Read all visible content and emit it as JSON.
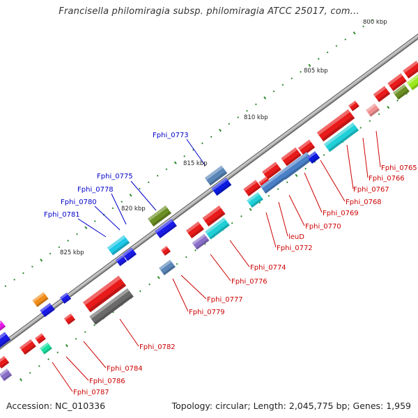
{
  "title": "Francisella philomiragia subsp. philomiragia ATCC 25017, com...",
  "accession": "Accession: NC_010336",
  "topology": "Topology: circular; Length: 2,045,775 bp; Genes: 1,959",
  "colors": {
    "backbone": "#8a8a8a",
    "label_forward": "#0000cc",
    "label_reverse": "#cc0000",
    "tick": "#2e8b2e"
  },
  "scale_labels": [
    "800 kbp",
    "805 kbp",
    "810 kbp",
    "815 kbp",
    "820 kbp",
    "825 kbp"
  ],
  "gene_labels_forward": [
    "Fphi_0773",
    "Fphi_0775",
    "Fphi_0778",
    "Fphi_0780",
    "Fphi_0781"
  ],
  "gene_labels_reverse": [
    "Fphi_0765",
    "Fphi_0766",
    "Fphi_0767",
    "Fphi_0768",
    "Fphi_0769",
    "Fphi_0770",
    "leuD",
    "Fphi_0772",
    "Fphi_0774",
    "Fphi_0776",
    "Fphi_0777",
    "Fphi_0779",
    "Fphi_0782",
    "Fphi_0784",
    "Fphi_0786",
    "Fphi_0787"
  ]
}
